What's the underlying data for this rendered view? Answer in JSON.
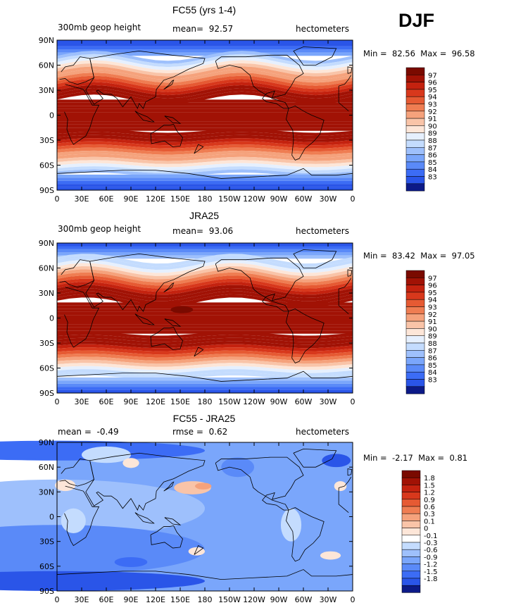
{
  "season": "DJF",
  "colors": {
    "blue_scale": [
      "#0c1a87",
      "#1c3ad0",
      "#2a55e8",
      "#3c6cf5",
      "#5a8af8",
      "#7aa6fb",
      "#9ec0fc",
      "#c4dcfe",
      "#e6f0fe"
    ],
    "red_scale": [
      "#fde6d8",
      "#f9c4a8",
      "#f5a27c",
      "#ef7d52",
      "#e65a33",
      "#d8381c",
      "#c4220f",
      "#a11205",
      "#7a0a00"
    ]
  },
  "panels": [
    {
      "title": "FC55 (yrs 1-4)",
      "left_label": "300mb geop height",
      "mean_label": "mean=",
      "mean_value": "92.57",
      "units": "hectometers",
      "min_label": "Min =",
      "min_value": "82.56",
      "max_label": "Max =",
      "max_value": "96.58",
      "x_ticks": [
        "0",
        "30E",
        "60E",
        "90E",
        "120E",
        "150E",
        "180",
        "150W",
        "120W",
        "90W",
        "60W",
        "30W",
        "0"
      ],
      "y_ticks": [
        "90N",
        "60N",
        "30N",
        "0",
        "30S",
        "60S",
        "90S"
      ],
      "legend_labels": [
        "97",
        "96",
        "95",
        "94",
        "93",
        "92",
        "91",
        "90",
        "89",
        "88",
        "87",
        "86",
        "85",
        "84",
        "83"
      ],
      "legend_colors": [
        "#7a0a00",
        "#a11205",
        "#c4220f",
        "#d8381c",
        "#e65a33",
        "#ef7d52",
        "#f5a27c",
        "#f9c4a8",
        "#fde6d8",
        "#e6f0fe",
        "#c4dcfe",
        "#9ec0fc",
        "#7aa6fb",
        "#5a8af8",
        "#3c6cf5",
        "#2a55e8",
        "#0c1a87"
      ]
    },
    {
      "title": "JRA25",
      "left_label": "300mb geop height",
      "mean_label": "mean=",
      "mean_value": "93.06",
      "units": "hectometers",
      "min_label": "Min =",
      "min_value": "83.42",
      "max_label": "Max =",
      "max_value": "97.05",
      "x_ticks": [
        "0",
        "30E",
        "60E",
        "90E",
        "120E",
        "150E",
        "180",
        "150W",
        "120W",
        "90W",
        "60W",
        "30W",
        "0"
      ],
      "y_ticks": [
        "90N",
        "60N",
        "30N",
        "0",
        "30S",
        "60S",
        "90S"
      ],
      "legend_labels": [
        "97",
        "96",
        "95",
        "94",
        "93",
        "92",
        "91",
        "90",
        "89",
        "88",
        "87",
        "86",
        "85",
        "84",
        "83"
      ],
      "legend_colors": [
        "#7a0a00",
        "#a11205",
        "#c4220f",
        "#d8381c",
        "#e65a33",
        "#ef7d52",
        "#f5a27c",
        "#f9c4a8",
        "#fde6d8",
        "#e6f0fe",
        "#c4dcfe",
        "#9ec0fc",
        "#7aa6fb",
        "#5a8af8",
        "#3c6cf5",
        "#2a55e8",
        "#0c1a87"
      ]
    },
    {
      "title": "FC55 - JRA25",
      "left_label": "mean =",
      "left_value": "-0.49",
      "mean_label": "rmse =",
      "mean_value": "0.62",
      "units": "hectometers",
      "min_label": "Min =",
      "min_value": "-2.17",
      "max_label": "Max =",
      "max_value": "0.81",
      "x_ticks": [
        "0",
        "30E",
        "60E",
        "90E",
        "120E",
        "150E",
        "180",
        "150W",
        "120W",
        "90W",
        "60W",
        "30W",
        "0"
      ],
      "y_ticks": [
        "90N",
        "60N",
        "30N",
        "0",
        "30S",
        "60S",
        "90S"
      ],
      "legend_labels": [
        "1.8",
        "1.5",
        "1.2",
        "0.9",
        "0.6",
        "0.3",
        "0.1",
        "0",
        "-0.1",
        "-0.3",
        "-0.6",
        "-0.9",
        "-1.2",
        "-1.5",
        "-1.8"
      ],
      "legend_colors": [
        "#7a0a00",
        "#a11205",
        "#c4220f",
        "#d8381c",
        "#e65a33",
        "#ef7d52",
        "#f5a27c",
        "#f9c4a8",
        "#fde6d8",
        "#ffffff",
        "#c4dcfe",
        "#9ec0fc",
        "#7aa6fb",
        "#5a8af8",
        "#3c6cf5",
        "#2a55e8",
        "#0c1a87"
      ]
    }
  ]
}
